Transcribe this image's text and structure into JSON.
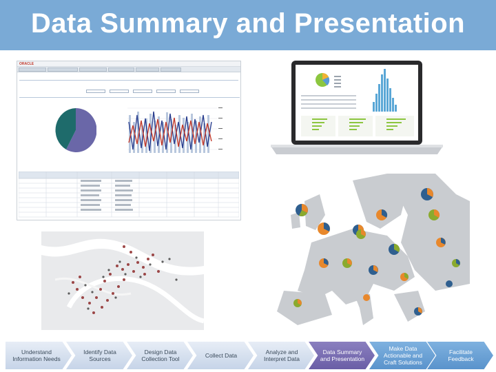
{
  "title": "Data Summary and Presentation",
  "colors": {
    "title_bar": "#7aaad6",
    "step_inactive": "#d6e1f0",
    "step_active": "#7a6fb3",
    "step_future": "#6aa2d6",
    "pie_teal": "#1e6b6b",
    "pie_purple": "#6a67a8",
    "map_orange": "#e8882c",
    "map_blue": "#2f5f8f",
    "map_green": "#8aaa2e"
  },
  "dashboard": {
    "brand": "ORACLE"
  },
  "process_steps": [
    {
      "label": "Understand Information Needs",
      "state": "inactive"
    },
    {
      "label": "Identify Data Sources",
      "state": "inactive"
    },
    {
      "label": "Design Data Collection Tool",
      "state": "inactive"
    },
    {
      "label": "Collect Data",
      "state": "inactive"
    },
    {
      "label": "Analyze and Interpret Data",
      "state": "inactive"
    },
    {
      "label": "Data Summary and Presentation",
      "state": "active"
    },
    {
      "label": "Make Data Actionable and Craft Solutions",
      "state": "future"
    },
    {
      "label": "Facilitate Feedback",
      "state": "future"
    }
  ]
}
